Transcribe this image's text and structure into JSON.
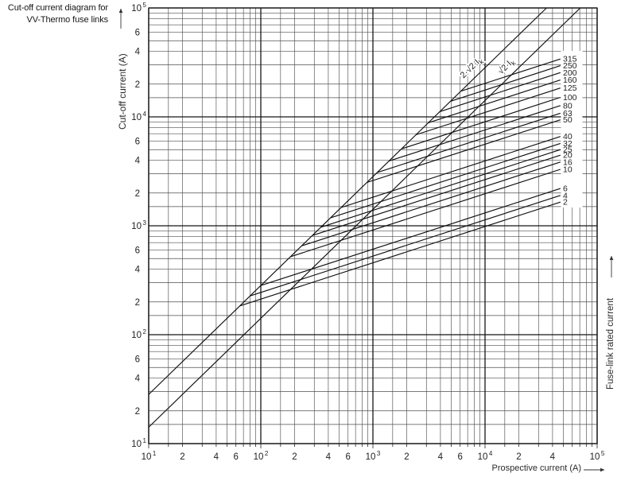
{
  "title": {
    "line1": "Cut-off current diagram for",
    "line2": "VV-Thermo fuse links"
  },
  "chart_data": {
    "type": "line",
    "scale": "log-log",
    "title": "Cut-off current diagram for VV-Thermo fuse links",
    "grid": "on",
    "grid_multiples": [
      1,
      1.5,
      2,
      3,
      4,
      5,
      6,
      7,
      8,
      9
    ],
    "x_axis": {
      "label": "Prospective current (A)",
      "range": [
        10,
        100000
      ],
      "ticks": [
        "10^1",
        "2",
        "4",
        "6",
        "10^2",
        "2",
        "4",
        "6",
        "10^3",
        "2",
        "4",
        "6",
        "10^4",
        "2",
        "4",
        "10^5"
      ]
    },
    "y_axis": {
      "label": "Cut-off current (A)",
      "range": [
        10,
        100000
      ],
      "ticks": [
        "10^5",
        "6",
        "4",
        "2",
        "10^4",
        "6",
        "4",
        "2",
        "10^3",
        "6",
        "4",
        "2",
        "10^2",
        "6",
        "4",
        "2",
        "10^1"
      ]
    },
    "right_axis_label": "Fuse-link rated current",
    "peak_current_lines": [
      {
        "label": "2·√2·I",
        "subscript": "k",
        "factor": 2.828
      },
      {
        "label": "√2·I",
        "subscript": "k",
        "factor": 1.414
      }
    ],
    "fuse_lines": {
      "slope_loglog": 0.333,
      "branch_from_factor_line": 2.828,
      "end_prospective_A": 47000,
      "series": [
        {
          "rating_A": 315,
          "cutoff_at_end_A": 34000
        },
        {
          "rating_A": 250,
          "cutoff_at_end_A": 29500
        },
        {
          "rating_A": 200,
          "cutoff_at_end_A": 25500
        },
        {
          "rating_A": 160,
          "cutoff_at_end_A": 21800
        },
        {
          "rating_A": 125,
          "cutoff_at_end_A": 18400
        },
        {
          "rating_A": 100,
          "cutoff_at_end_A": 15100
        },
        {
          "rating_A": 80,
          "cutoff_at_end_A": 12700
        },
        {
          "rating_A": 63,
          "cutoff_at_end_A": 10800
        },
        {
          "rating_A": 50,
          "cutoff_at_end_A": 9400
        },
        {
          "rating_A": 40,
          "cutoff_at_end_A": 6600
        },
        {
          "rating_A": 32,
          "cutoff_at_end_A": 5700
        },
        {
          "rating_A": 25,
          "cutoff_at_end_A": 5000
        },
        {
          "rating_A": 20,
          "cutoff_at_end_A": 4450
        },
        {
          "rating_A": 16,
          "cutoff_at_end_A": 3850
        },
        {
          "rating_A": 10,
          "cutoff_at_end_A": 3300
        },
        {
          "rating_A": 6,
          "cutoff_at_end_A": 2200
        },
        {
          "rating_A": 4,
          "cutoff_at_end_A": 1900
        },
        {
          "rating_A": 2,
          "cutoff_at_end_A": 1650
        }
      ]
    },
    "colors": {
      "line": "#101010",
      "grid_minor": "#4e4e4e",
      "grid_major": "#161616",
      "text": "#222222"
    }
  }
}
